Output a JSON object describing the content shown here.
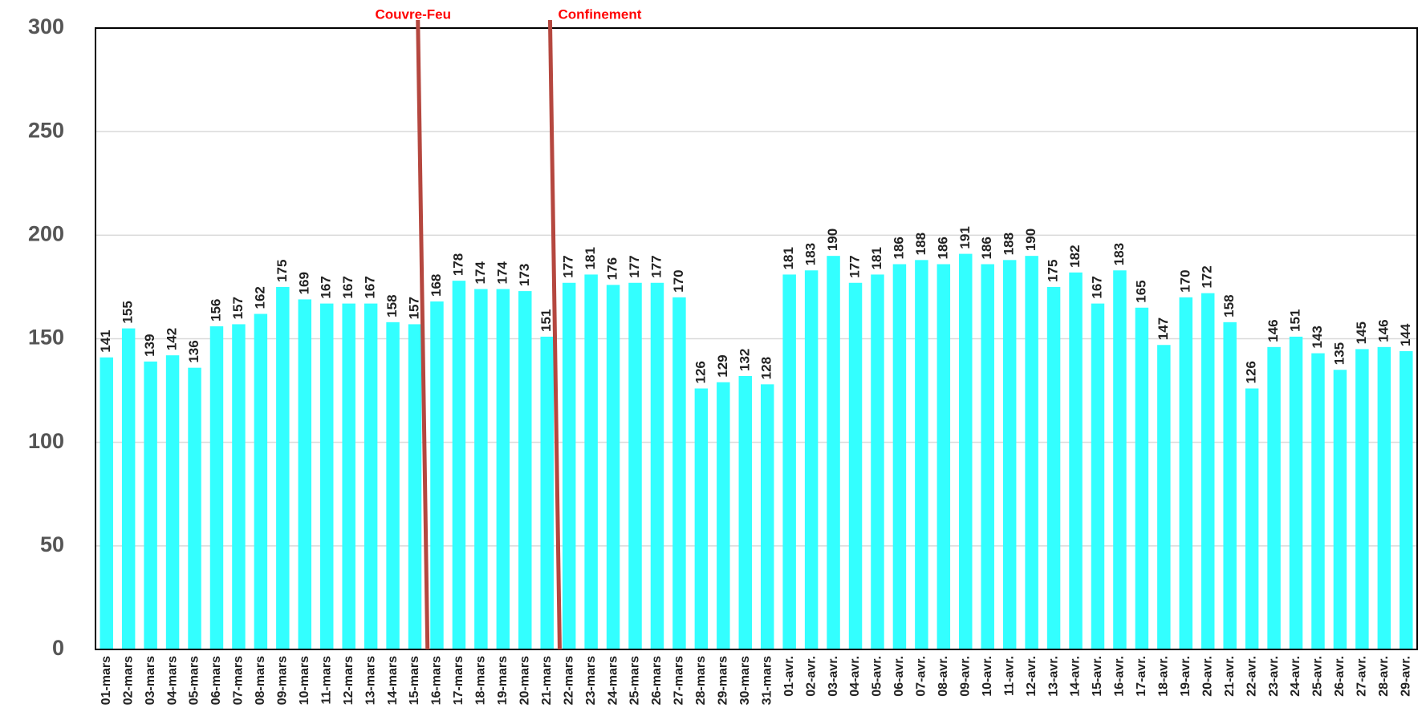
{
  "chart_data": {
    "type": "bar",
    "categories": [
      "01-mars",
      "02-mars",
      "03-mars",
      "04-mars",
      "05-mars",
      "06-mars",
      "07-mars",
      "08-mars",
      "09-mars",
      "10-mars",
      "11-mars",
      "12-mars",
      "13-mars",
      "14-mars",
      "15-mars",
      "16-mars",
      "17-mars",
      "18-mars",
      "19-mars",
      "20-mars",
      "21-mars",
      "22-mars",
      "23-mars",
      "24-mars",
      "25-mars",
      "26-mars",
      "27-mars",
      "28-mars",
      "29-mars",
      "30-mars",
      "31-mars",
      "01-avr.",
      "02-avr.",
      "03-avr.",
      "04-avr.",
      "05-avr.",
      "06-avr.",
      "07-avr.",
      "08-avr.",
      "09-avr.",
      "10-avr.",
      "11-avr.",
      "12-avr.",
      "13-avr.",
      "14-avr.",
      "15-avr.",
      "16-avr.",
      "17-avr.",
      "18-avr.",
      "19-avr.",
      "20-avr.",
      "21-avr.",
      "22-avr.",
      "23-avr.",
      "24-avr.",
      "25-avr.",
      "26-avr.",
      "27-avr.",
      "28-avr.",
      "29-avr."
    ],
    "values": [
      141,
      155,
      139,
      142,
      136,
      156,
      157,
      162,
      175,
      169,
      167,
      167,
      167,
      158,
      157,
      168,
      178,
      174,
      174,
      173,
      151,
      177,
      181,
      176,
      177,
      177,
      170,
      126,
      129,
      132,
      128,
      181,
      183,
      190,
      177,
      181,
      186,
      188,
      186,
      191,
      186,
      188,
      190,
      175,
      182,
      167,
      183,
      165,
      147,
      170,
      172,
      158,
      126,
      146,
      151,
      143,
      135,
      145,
      146,
      144
    ],
    "color": "#33ffff",
    "ylim": [
      0,
      300
    ],
    "yticks": [
      0,
      50,
      100,
      150,
      200,
      250,
      300
    ],
    "grid": true,
    "annotations": [
      {
        "text": "Couvre-Feu",
        "color": "#ff0000"
      },
      {
        "text": "Confinement",
        "color": "#ff0000"
      }
    ]
  }
}
